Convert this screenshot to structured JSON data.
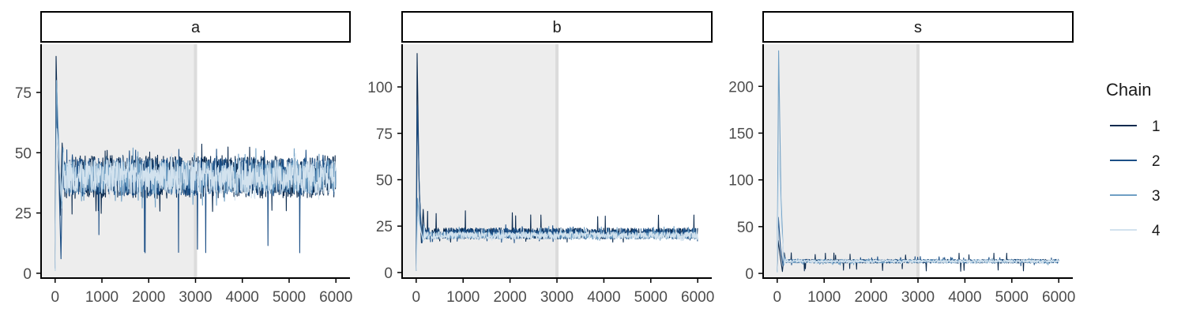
{
  "chart_data": [
    {
      "type": "line",
      "panel": "a",
      "title": "",
      "xlabel": "",
      "ylabel": "",
      "xlim": [
        -300,
        6300
      ],
      "ylim": [
        -2,
        95
      ],
      "x_ticks": [
        0,
        1000,
        2000,
        3000,
        4000,
        5000,
        6000
      ],
      "y_ticks": [
        0,
        25,
        50,
        75
      ],
      "warmup": [
        0,
        3000
      ],
      "series": [
        {
          "name": "1",
          "color": "#0b2a4e",
          "start": 2,
          "peak": 90,
          "mean": 40,
          "band": 9,
          "spike_low": 24,
          "spike_high": 54
        },
        {
          "name": "2",
          "color": "#1c4f86",
          "start": 2,
          "peak": 70,
          "mean": 40,
          "band": 8,
          "spike_low": 6,
          "spike_high": 52
        },
        {
          "name": "3",
          "color": "#6f9fc4",
          "start": 1,
          "peak": 80,
          "mean": 40,
          "band": 7,
          "spike_low": 27,
          "spike_high": 52
        },
        {
          "name": "4",
          "color": "#d2e2ee",
          "start": 1,
          "peak": 60,
          "mean": 40,
          "band": 7,
          "spike_low": 30,
          "spike_high": 50
        }
      ]
    },
    {
      "type": "line",
      "panel": "b",
      "title": "",
      "xlabel": "",
      "ylabel": "",
      "xlim": [
        -300,
        6300
      ],
      "ylim": [
        -3,
        123
      ],
      "x_ticks": [
        0,
        1000,
        2000,
        3000,
        4000,
        5000,
        6000
      ],
      "y_ticks": [
        0,
        25,
        50,
        75,
        100
      ],
      "warmup": [
        0,
        3000
      ],
      "series": [
        {
          "name": "1",
          "color": "#0b2a4e",
          "start": 1,
          "peak": 118,
          "mean": 21,
          "band": 3,
          "spike_low": 16,
          "spike_high": 34
        },
        {
          "name": "2",
          "color": "#1c4f86",
          "start": 1,
          "peak": 90,
          "mean": 21,
          "band": 3,
          "spike_low": 16,
          "spike_high": 26
        },
        {
          "name": "3",
          "color": "#6f9fc4",
          "start": 1,
          "peak": 40,
          "mean": 20,
          "band": 2,
          "spike_low": 17,
          "spike_high": 25
        },
        {
          "name": "4",
          "color": "#d2e2ee",
          "start": 1,
          "peak": 30,
          "mean": 20,
          "band": 2,
          "spike_low": 17,
          "spike_high": 24
        }
      ]
    },
    {
      "type": "line",
      "panel": "s",
      "title": "",
      "xlabel": "",
      "ylabel": "",
      "xlim": [
        -300,
        6300
      ],
      "ylim": [
        -5,
        245
      ],
      "x_ticks": [
        0,
        1000,
        2000,
        3000,
        4000,
        5000,
        6000
      ],
      "y_ticks": [
        0,
        50,
        100,
        150,
        200
      ],
      "warmup": [
        0,
        3000
      ],
      "series": [
        {
          "name": "1",
          "color": "#0b2a4e",
          "start": 2,
          "peak": 35,
          "mean": 13,
          "band": 2,
          "spike_low": 2,
          "spike_high": 22
        },
        {
          "name": "2",
          "color": "#1c4f86",
          "start": 2,
          "peak": 60,
          "mean": 13,
          "band": 2,
          "spike_low": 8,
          "spike_high": 18
        },
        {
          "name": "3",
          "color": "#6f9fc4",
          "start": 1,
          "peak": 238,
          "mean": 13,
          "band": 2,
          "spike_low": 9,
          "spike_high": 16
        },
        {
          "name": "4",
          "color": "#d2e2ee",
          "start": 1,
          "peak": 130,
          "mean": 13,
          "band": 1.5,
          "spike_low": 10,
          "spike_high": 15
        }
      ]
    }
  ],
  "legend": {
    "title": "Chain",
    "items": [
      {
        "label": "1",
        "color": "#0b2a4e"
      },
      {
        "label": "2",
        "color": "#1c4f86"
      },
      {
        "label": "3",
        "color": "#6f9fc4"
      },
      {
        "label": "4",
        "color": "#d2e2ee"
      }
    ]
  },
  "colors": {
    "warmup_fill": "#ededed",
    "warmup_edge": "#dcdcdc",
    "axis": "#000000",
    "tick_label": "#4d4d4d"
  }
}
